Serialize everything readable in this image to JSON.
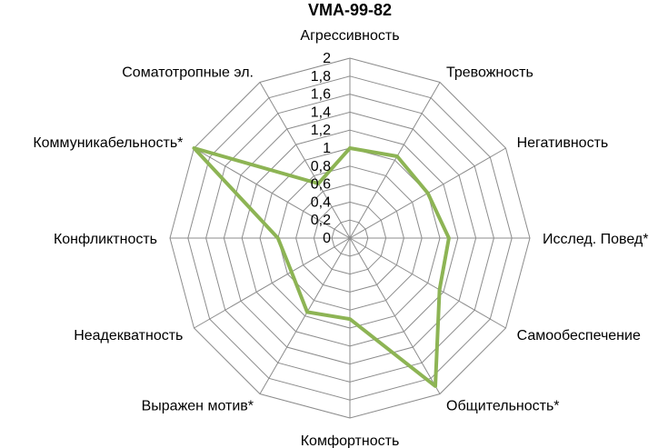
{
  "chart_data": {
    "type": "radar",
    "title": "VMA-99-82",
    "categories": [
      "Агрессивность",
      "Тревожность",
      "Негативность",
      "Исслед. Повед*",
      "Самообеспечение",
      "Общительность*",
      "Комфортность",
      "Выражен мотив*",
      "Неадекватность",
      "Конфликтность",
      "Коммуникабельность*",
      "Соматотропные эл."
    ],
    "series": [
      {
        "values": [
          1.0,
          1.05,
          1.0,
          1.1,
          1.15,
          1.9,
          0.9,
          0.95,
          0.75,
          0.8,
          2.0,
          0.7
        ]
      }
    ],
    "rlim": [
      0,
      2
    ],
    "ticks": [
      "0",
      "0,2",
      "0,4",
      "0,6",
      "0,8",
      "1",
      "1,2",
      "1,4",
      "1,6",
      "1,8",
      "2"
    ],
    "grid": true,
    "legend": "none",
    "colors": {
      "series": "#8db454",
      "grid": "#8c8c8c"
    }
  }
}
